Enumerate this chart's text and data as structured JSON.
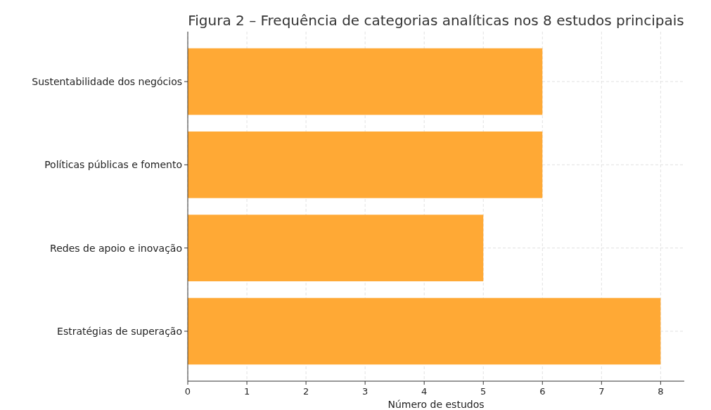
{
  "chart_data": {
    "type": "bar",
    "orientation": "horizontal",
    "title": "Figura 2 – Frequência de categorias analíticas nos 8 estudos principais",
    "xlabel": "Número de estudos",
    "categories": [
      "Sustentabilidade dos negócios",
      "Políticas públicas e fomento",
      "Redes de apoio e inovação",
      "Estratégias de superação"
    ],
    "values": [
      6,
      6,
      5,
      8
    ],
    "color": "#ffa935",
    "xlim": [
      0,
      8.4
    ],
    "xticks": [
      0,
      1,
      2,
      3,
      4,
      5,
      6,
      7,
      8
    ],
    "grid": true
  }
}
